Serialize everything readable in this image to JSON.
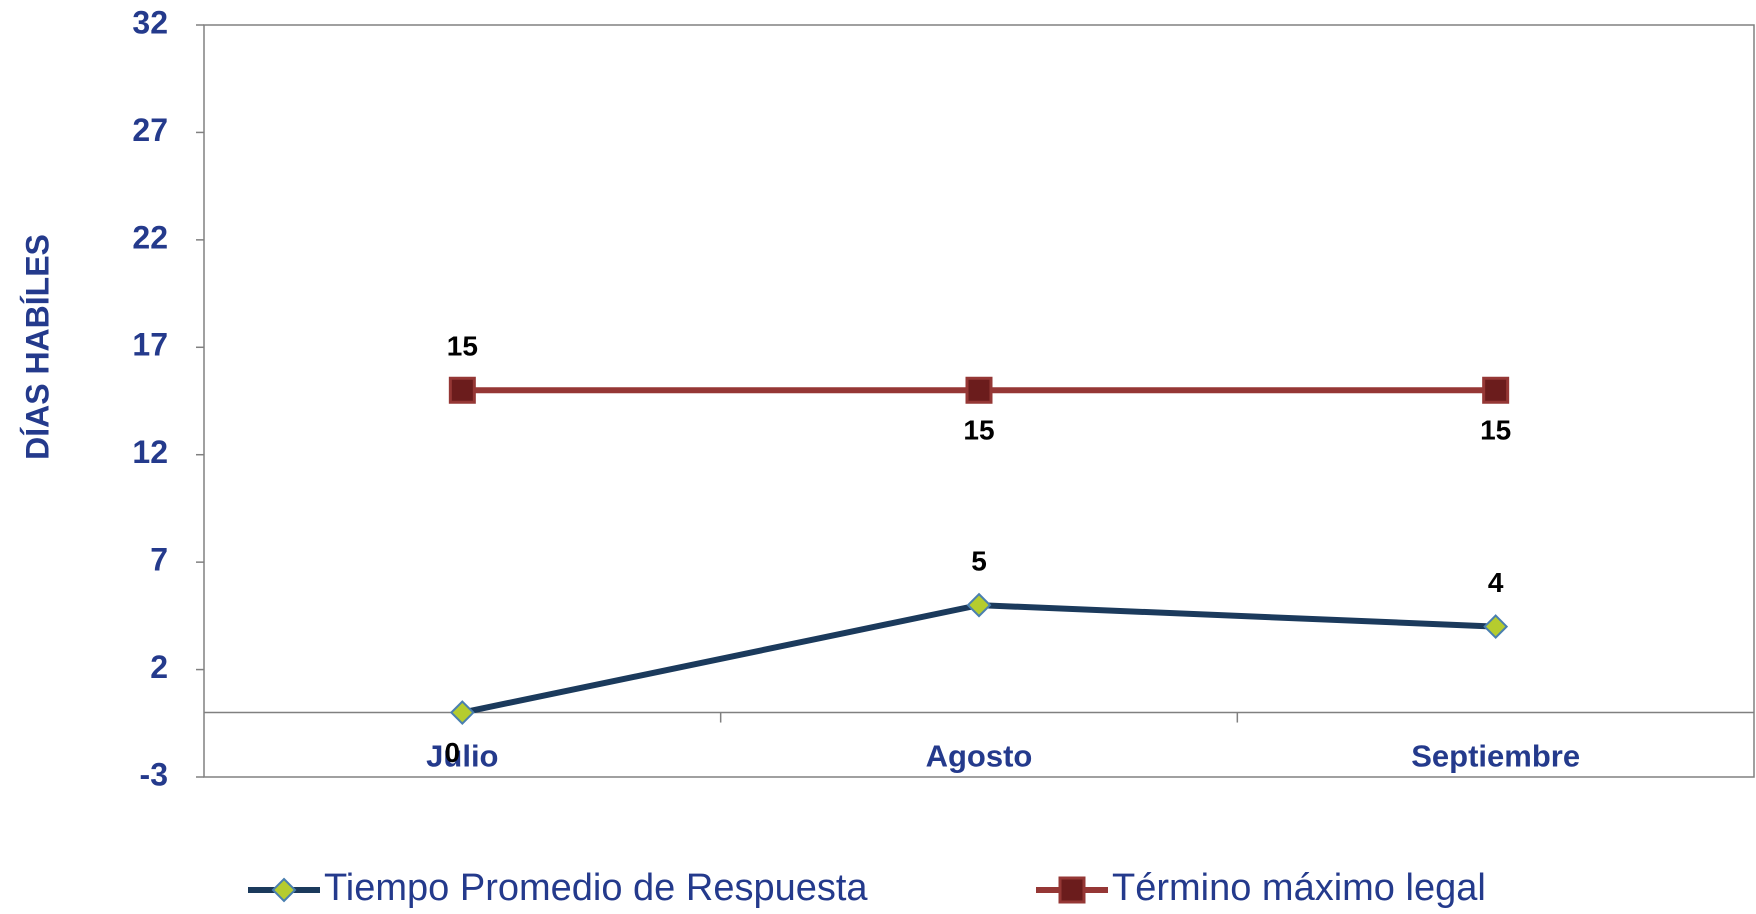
{
  "chart_data": {
    "type": "line",
    "y_label": "DÍAS HABÍLES",
    "categories": [
      "Julio",
      "Agosto",
      "Septiembre"
    ],
    "series": [
      {
        "name": "Tiempo Promedio de Respuesta",
        "color": "#1b3a5c",
        "marker_color": "#b5cc2e",
        "marker": "diamond",
        "values": [
          0,
          5,
          4
        ]
      },
      {
        "name": "Término máximo legal",
        "color": "#953735",
        "marker_color": "#6b1c1c",
        "marker": "square",
        "values": [
          15,
          15,
          15
        ]
      }
    ],
    "ylim": [
      -3,
      32
    ],
    "yticks": [
      -3,
      2,
      7,
      12,
      17,
      22,
      27,
      32
    ],
    "legend": "bottom"
  }
}
